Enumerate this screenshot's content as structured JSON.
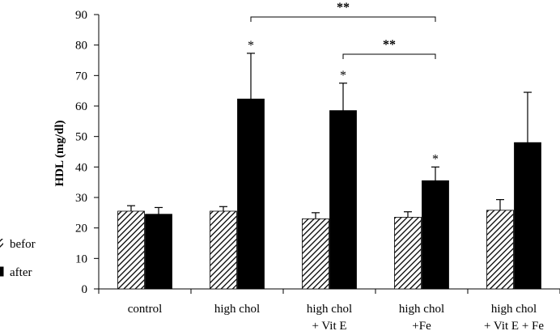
{
  "chart_data": {
    "type": "bar",
    "title": "",
    "xlabel": "",
    "ylabel": "HDL (mg/dl)",
    "ylim": [
      0,
      90
    ],
    "yticks": [
      "0",
      "10",
      "20",
      "30",
      "40",
      "50",
      "60",
      "70",
      "80",
      "90"
    ],
    "grid": false,
    "categories": [
      [
        "control"
      ],
      [
        "high chol"
      ],
      [
        "high chol",
        "+ Vit E"
      ],
      [
        "high chol",
        "+Fe"
      ],
      [
        "high chol",
        "+ Vit E + Fe"
      ]
    ],
    "series": [
      {
        "name": "befor",
        "pattern": "hatched",
        "values": [
          25.5,
          25.5,
          23,
          23.5,
          25.8
        ],
        "errors": [
          1.8,
          1.5,
          2,
          1.8,
          3.5
        ],
        "stars": [
          "",
          "",
          "",
          "",
          ""
        ]
      },
      {
        "name": "after",
        "pattern": "solid",
        "values": [
          24.5,
          62.3,
          58.5,
          35.5,
          48
        ],
        "errors": [
          2.2,
          15,
          9,
          4.5,
          16.5
        ],
        "stars": [
          "",
          "*",
          "*",
          "*",
          ""
        ]
      }
    ],
    "significance": [
      {
        "from_category": 1,
        "to_category": 3,
        "label": "**"
      },
      {
        "from_category": 2,
        "to_category": 3,
        "label": "**"
      }
    ],
    "legend_position": "left"
  }
}
